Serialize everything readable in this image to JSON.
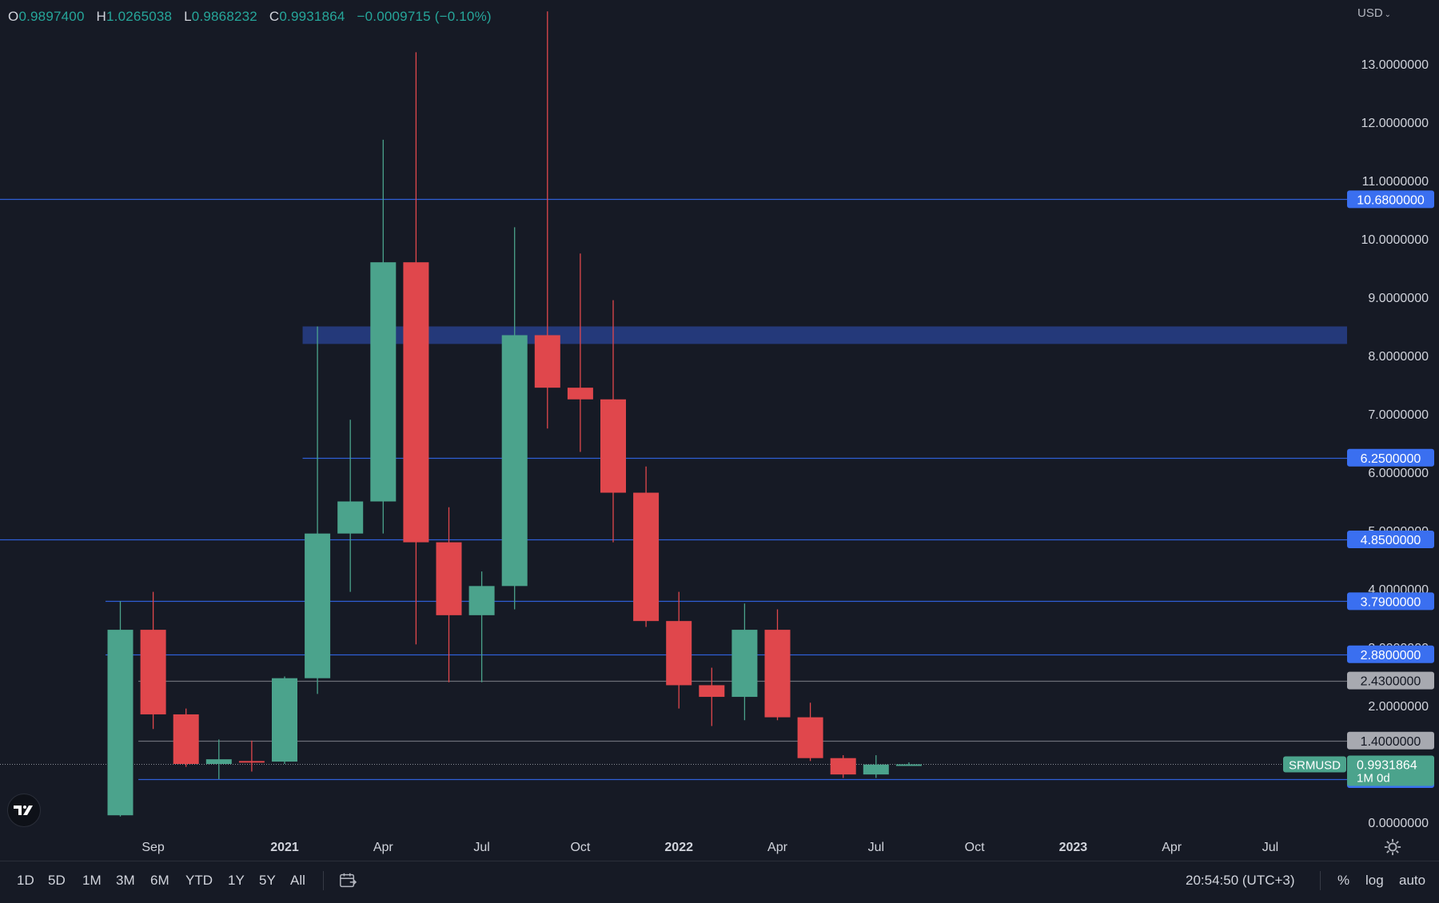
{
  "ohlc": {
    "open_key": "O",
    "open": "0.9897400",
    "high_key": "H",
    "high": "1.0265038",
    "low_key": "L",
    "low": "0.9868232",
    "close_key": "C",
    "close": "0.9931864",
    "change": "−0.0009715 (−0.10%)"
  },
  "currency": {
    "label": "USD"
  },
  "symbol_label": {
    "name": "SRMUSD",
    "price": "0.9931864",
    "countdown": "1M 0d"
  },
  "colors": {
    "background": "#161a25",
    "up": "#4ba38c",
    "down": "#e0474c",
    "level_line": "#2f5fd6",
    "label_blue": "#3a6ff0",
    "label_gray": "#a7a9b0",
    "zone": "#24397a",
    "grid_text": "#d1d4dc"
  },
  "bottom_bar": {
    "timeframes": [
      "1D",
      "5D",
      "1M",
      "3M",
      "6M",
      "YTD",
      "1Y",
      "5Y",
      "All"
    ],
    "clock": "20:54:50 (UTC+3)",
    "percent": "%",
    "log": "log",
    "auto": "auto"
  },
  "chart_data": {
    "type": "candlestick",
    "symbol": "SRMUSD",
    "interval": "1M",
    "y_axis": {
      "ticks": [
        "0.0000000",
        "1.0000000",
        "2.0000000",
        "3.0000000",
        "4.0000000",
        "5.0000000",
        "6.0000000",
        "7.0000000",
        "8.0000000",
        "9.0000000",
        "10.0000000",
        "11.0000000",
        "12.0000000",
        "13.0000000"
      ],
      "ylim": [
        0.0,
        13.6
      ]
    },
    "x_axis": {
      "ticks": [
        {
          "label": "Sep",
          "bold": false
        },
        {
          "label": "2021",
          "bold": true
        },
        {
          "label": "Apr",
          "bold": false
        },
        {
          "label": "Jul",
          "bold": false
        },
        {
          "label": "Oct",
          "bold": false
        },
        {
          "label": "2022",
          "bold": true
        },
        {
          "label": "Apr",
          "bold": false
        },
        {
          "label": "Jul",
          "bold": false
        },
        {
          "label": "Oct",
          "bold": false
        },
        {
          "label": "2023",
          "bold": true
        },
        {
          "label": "Apr",
          "bold": false
        },
        {
          "label": "Jul",
          "bold": false
        }
      ]
    },
    "candles": [
      {
        "date": "2020-08",
        "open": 0.12,
        "high": 3.79,
        "low": 0.1,
        "close": 3.3
      },
      {
        "date": "2020-09",
        "open": 3.3,
        "high": 3.95,
        "low": 1.6,
        "close": 1.85
      },
      {
        "date": "2020-10",
        "open": 1.85,
        "high": 1.95,
        "low": 0.95,
        "close": 1.0
      },
      {
        "date": "2020-11",
        "open": 1.0,
        "high": 1.42,
        "low": 0.74,
        "close": 1.08
      },
      {
        "date": "2020-12",
        "open": 1.05,
        "high": 1.4,
        "low": 0.87,
        "close": 1.03
      },
      {
        "date": "2021-01",
        "open": 1.04,
        "high": 2.5,
        "low": 1.0,
        "close": 2.47
      },
      {
        "date": "2021-02",
        "open": 2.47,
        "high": 8.5,
        "low": 2.2,
        "close": 4.95
      },
      {
        "date": "2021-03",
        "open": 4.95,
        "high": 6.9,
        "low": 3.95,
        "close": 5.5
      },
      {
        "date": "2021-04",
        "open": 5.5,
        "high": 11.7,
        "low": 4.95,
        "close": 9.6
      },
      {
        "date": "2021-05",
        "open": 9.6,
        "high": 13.2,
        "low": 3.05,
        "close": 4.8
      },
      {
        "date": "2021-06",
        "open": 4.8,
        "high": 5.4,
        "low": 2.4,
        "close": 3.55
      },
      {
        "date": "2021-07",
        "open": 3.55,
        "high": 4.3,
        "low": 2.4,
        "close": 4.05
      },
      {
        "date": "2021-08",
        "open": 4.05,
        "high": 10.2,
        "low": 3.65,
        "close": 8.35
      },
      {
        "date": "2021-09",
        "open": 8.35,
        "high": 13.9,
        "low": 6.75,
        "close": 7.45
      },
      {
        "date": "2021-10",
        "open": 7.45,
        "high": 9.75,
        "low": 6.35,
        "close": 7.25
      },
      {
        "date": "2021-11",
        "open": 7.25,
        "high": 8.95,
        "low": 4.8,
        "close": 5.65
      },
      {
        "date": "2021-12",
        "open": 5.65,
        "high": 6.1,
        "low": 3.35,
        "close": 3.45
      },
      {
        "date": "2022-01",
        "open": 3.45,
        "high": 3.95,
        "low": 1.95,
        "close": 2.35
      },
      {
        "date": "2022-02",
        "open": 2.35,
        "high": 2.65,
        "low": 1.65,
        "close": 2.15
      },
      {
        "date": "2022-03",
        "open": 2.15,
        "high": 3.75,
        "low": 1.75,
        "close": 3.3
      },
      {
        "date": "2022-04",
        "open": 3.3,
        "high": 3.65,
        "low": 1.75,
        "close": 1.8
      },
      {
        "date": "2022-05",
        "open": 1.8,
        "high": 2.05,
        "low": 1.05,
        "close": 1.1
      },
      {
        "date": "2022-06",
        "open": 1.1,
        "high": 1.15,
        "low": 0.76,
        "close": 0.82
      },
      {
        "date": "2022-07",
        "open": 0.82,
        "high": 1.15,
        "low": 0.76,
        "close": 0.99
      },
      {
        "date": "2022-08",
        "open": 0.98974,
        "high": 1.0265038,
        "low": 0.9868232,
        "close": 0.9931864
      }
    ],
    "levels": [
      {
        "value": 10.68,
        "label": "10.6800000",
        "color": "blue",
        "start_date": "2020-01"
      },
      {
        "value": 6.25,
        "label": "6.2500000",
        "color": "blue",
        "start_date": "2021-02"
      },
      {
        "value": 4.85,
        "label": "4.8500000",
        "color": "blue",
        "start_date": "2020-01"
      },
      {
        "value": 3.79,
        "label": "3.7900000",
        "color": "blue",
        "start_date": "2020-08"
      },
      {
        "value": 2.88,
        "label": "2.8800000",
        "color": "blue",
        "start_date": "2020-08"
      },
      {
        "value": 2.43,
        "label": "2.4300000",
        "color": "gray",
        "start_date": "2020-09"
      },
      {
        "value": 1.4,
        "label": "1.4000000",
        "color": "gray",
        "start_date": "2020-09"
      },
      {
        "value": 0.985,
        "label": "0.9850000",
        "color": "gray",
        "start_date": null
      },
      {
        "value": 0.74,
        "label": "0.7400000",
        "color": "blue",
        "start_date": "2020-09"
      }
    ],
    "current_price": {
      "value": 0.9931864,
      "label": "0.9931864"
    },
    "zones": [
      {
        "from": 8.2,
        "to": 8.5,
        "start_date": "2021-02"
      }
    ]
  }
}
